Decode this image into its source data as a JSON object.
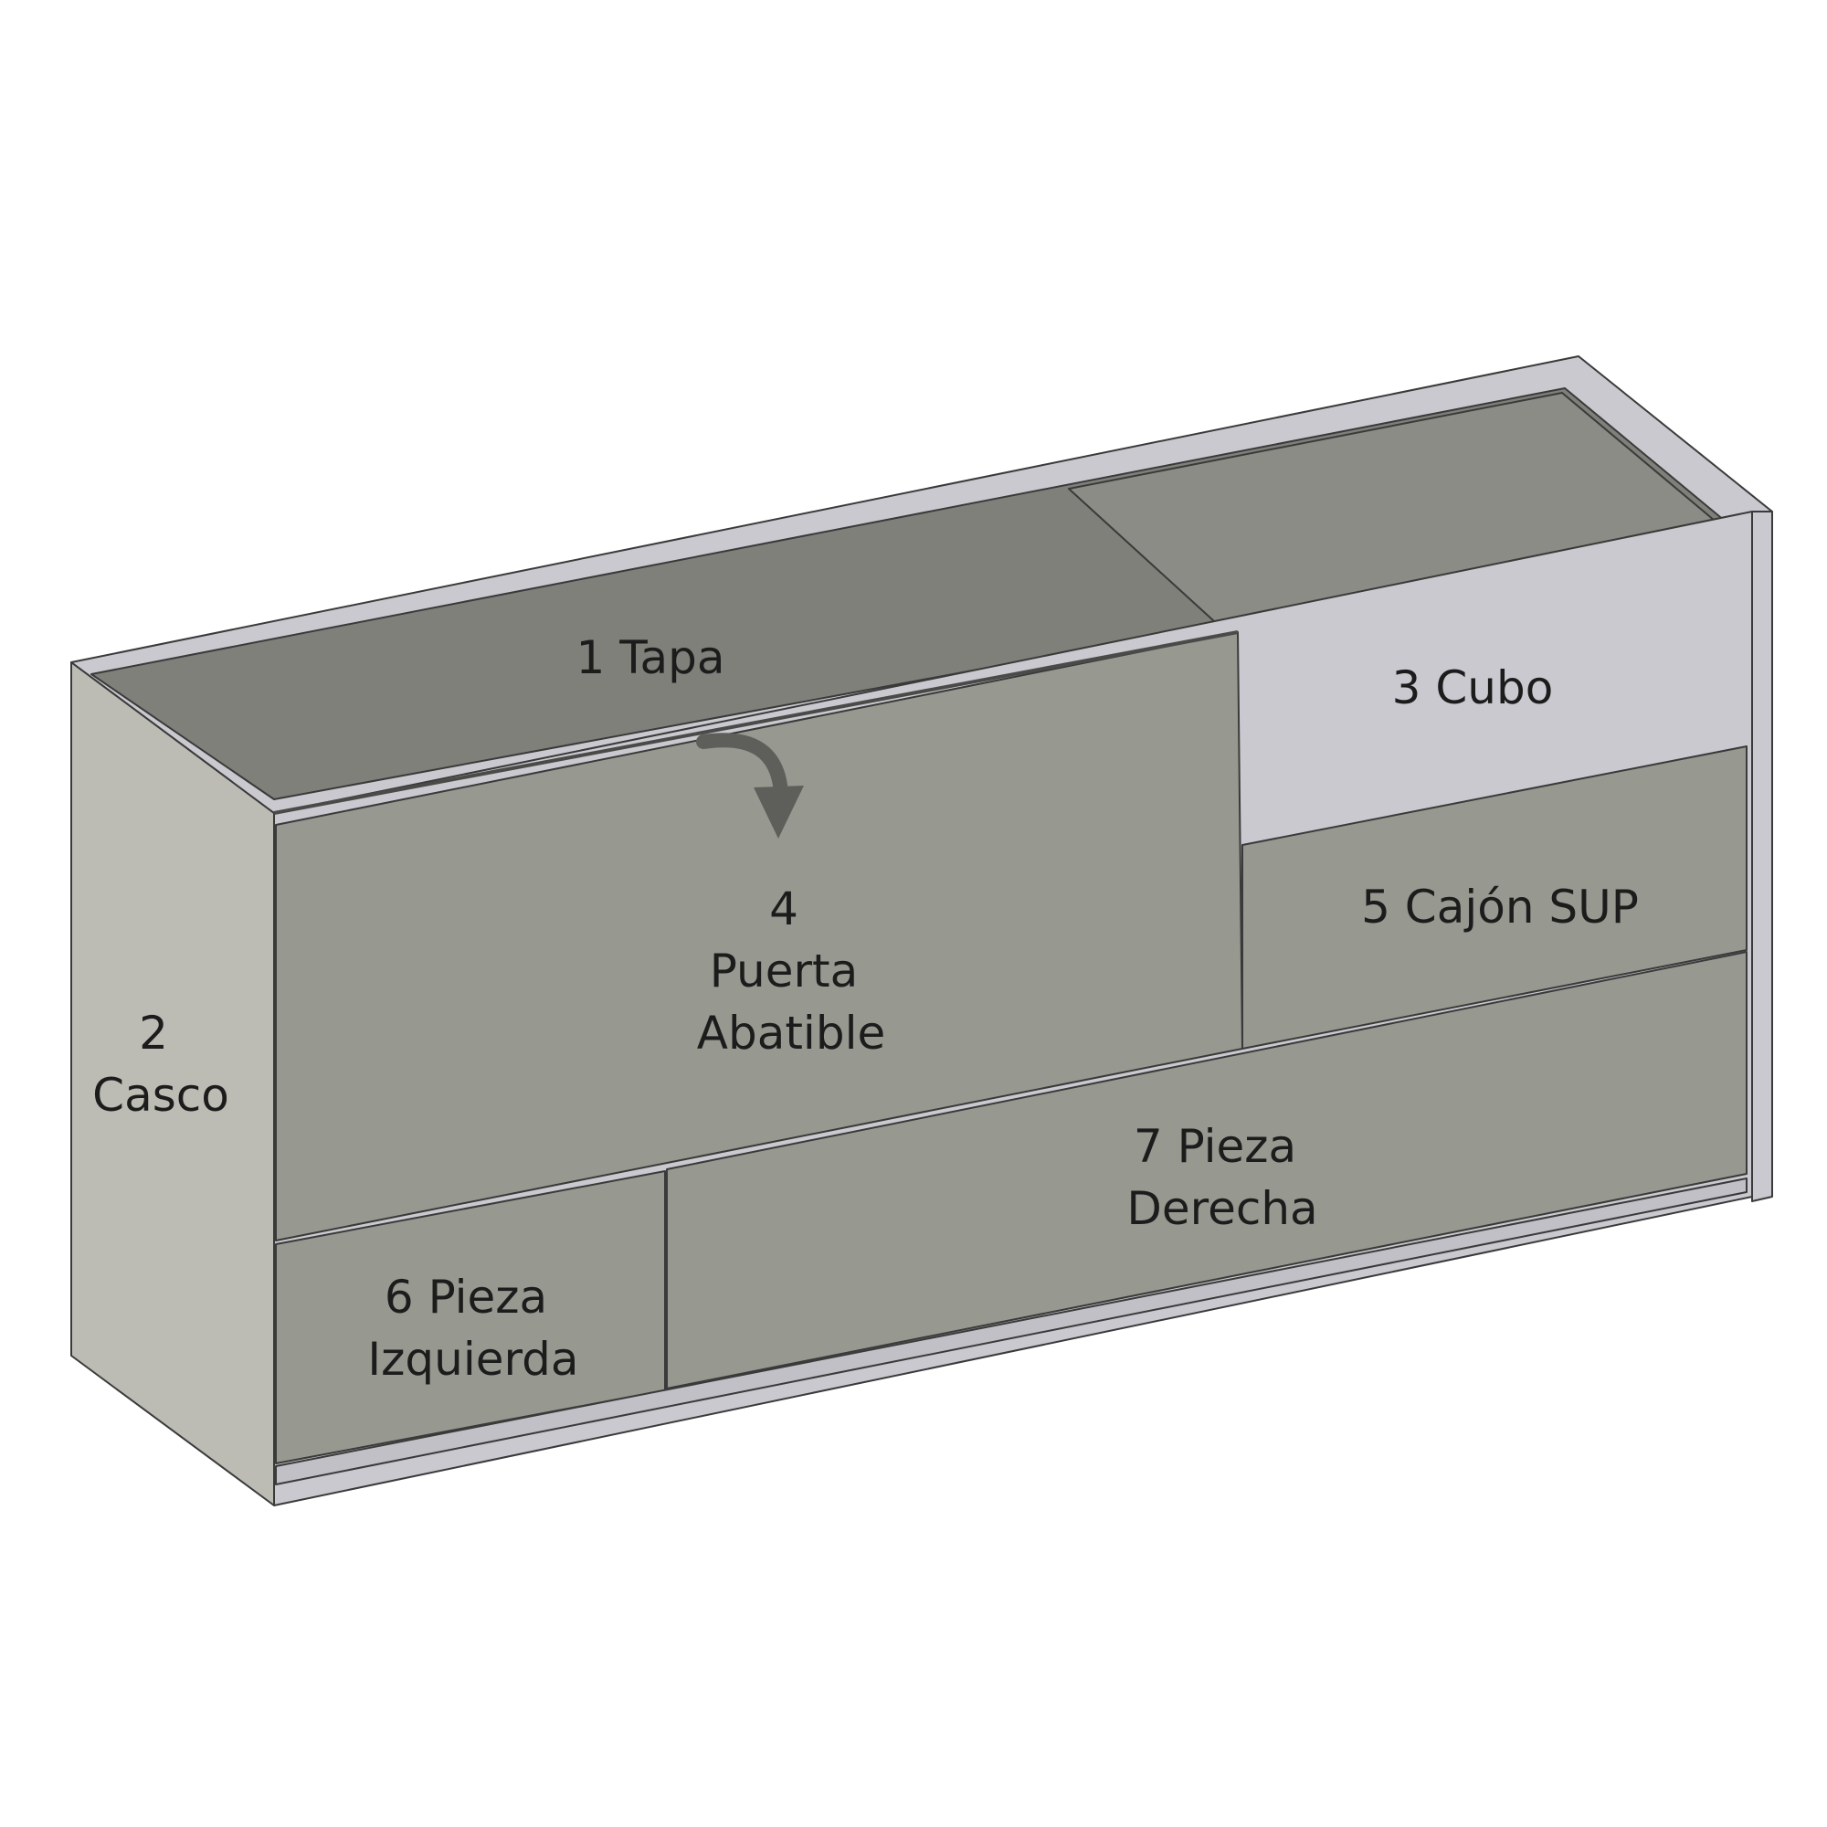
{
  "diagram": {
    "type": "furniture-part-diagram",
    "parts": [
      {
        "id": "tapa",
        "lines": [
          "1 Tapa"
        ]
      },
      {
        "id": "casco",
        "lines": [
          "2",
          "Casco"
        ]
      },
      {
        "id": "cubo",
        "lines": [
          "3 Cubo"
        ]
      },
      {
        "id": "puerta",
        "lines": [
          "4",
          "Puerta",
          "Abatible"
        ]
      },
      {
        "id": "cajon-sup",
        "lines": [
          "5 Cajón SUP"
        ]
      },
      {
        "id": "pieza-izq",
        "lines": [
          "6 Pieza",
          "Izquierda"
        ]
      },
      {
        "id": "pieza-der",
        "lines": [
          "7 Pieza",
          "Derecha"
        ]
      }
    ],
    "colors": {
      "side_panel": "#bcbcb4",
      "front_panel": "#979890",
      "top_surface": "#7f807a",
      "frame_edge": "#c9c9cf",
      "inner_back": "#d2d2c8",
      "arrow": "#5e5f5a",
      "text": "#1c1c1c"
    }
  }
}
